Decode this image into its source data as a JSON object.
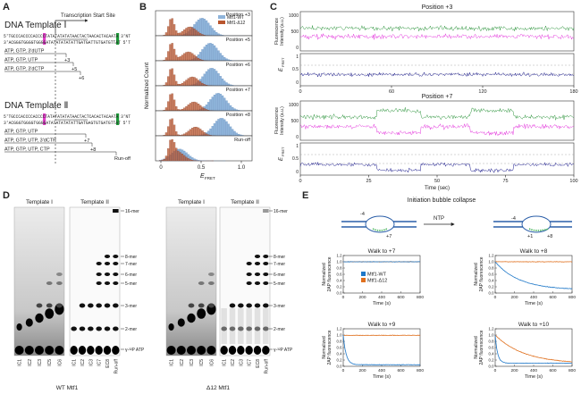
{
  "panel_a": {
    "label": "A",
    "template_1": {
      "title": "DNA Template Ⅰ",
      "start_site": "Transcription Start Site",
      "strand_nt": "5'TGCCCACCCCACCCCTATATATATATAACTACTAACACTACAATA 3'NT",
      "strand_t": "3'ACGGGTGGGGTGGGGATATATATATATTGATGATTGTGATGTTAT 5'T",
      "conditions": [
        [
          "ATP, GTP, 3'dUTP",
          "+3"
        ],
        [
          "ATP, GTP, UTP",
          "+5"
        ],
        [
          "ATP, GTP, 3'dCTP",
          "+6"
        ]
      ]
    },
    "template_2": {
      "title": "DNA Template Ⅱ",
      "strand_nt": "5'TGCCCACCCCACCCCTATATATATATAACTACTCACACTACAATA 3'NT",
      "strand_t": "3'ACGGGTGGGGTGGGGATATATATATATTGATGAGTGTGATGTTAT 5'T",
      "conditions": [
        [
          "ATP, GTP, UTP",
          "+7"
        ],
        [
          "ATP, GTP, UTP, 3'dCTP",
          "+8"
        ],
        [
          "ATP, GTP, UTP, CTP",
          "Run-off"
        ]
      ]
    }
  },
  "panel_b": {
    "label": "B",
    "y_label": "Normalized Count",
    "x_label": "E",
    "x_label_sub": "FRET",
    "x_ticks": [
      "0",
      "0.5",
      "1.0"
    ],
    "rows": [
      "Position +3",
      "Position +5",
      "Position +6",
      "Position +7",
      "Position +8",
      "Run-off"
    ],
    "legend": [
      "Mtf1-WT",
      "Mtf1-Δ12"
    ]
  },
  "panel_c": {
    "label": "C",
    "intensity_label": [
      "Fluorescence",
      "Intensity (a.u.)"
    ],
    "efret_label": "E",
    "efret_sub": "FRET",
    "intensity_ticks": [
      "1000",
      "500",
      "0"
    ],
    "efret_ticks": [
      "1",
      "0.5",
      "0"
    ],
    "x_label": "Time (sec)",
    "traces": [
      {
        "title": "Position +3",
        "x_ticks": [
          "0",
          "60",
          "120",
          "180"
        ]
      },
      {
        "title": "Position +7",
        "x_ticks": [
          "0",
          "25",
          "50",
          "75",
          "100"
        ]
      }
    ]
  },
  "panel_d": {
    "label": "D",
    "gels": [
      {
        "title": "Template I",
        "lanes": [
          "IC1",
          "IC2",
          "IC3",
          "IC5",
          "IC6"
        ]
      },
      {
        "title": "Template II",
        "lanes": [
          "IC1",
          "IC2",
          "IC3",
          "IC7",
          "EC8",
          "Run-off"
        ]
      }
    ],
    "markers": [
      "16-mer",
      "8-mer",
      "7-mer",
      "6-mer",
      "5-mer",
      "3-mer",
      "2-mer",
      "γ-³²P ATP"
    ],
    "captions": [
      "WT Mtf1",
      "Δ12 Mtf1"
    ]
  },
  "panel_e": {
    "label": "E",
    "title": "Initiation bubble collapse",
    "arrow": "NTP",
    "left_marks": [
      "-4",
      "+7"
    ],
    "right_marks": [
      "-4",
      "+1",
      "+8"
    ],
    "plots": [
      "Walk to +7",
      "Walk to +8",
      "Walk to +9",
      "Walk to +10"
    ],
    "y_label": [
      "Normalized",
      "2AP fluorescence"
    ],
    "x_label": "Time (s)",
    "x_ticks": [
      "0",
      "200",
      "400",
      "600",
      "800"
    ],
    "y_ticks": [
      "0.0",
      "0.2",
      "0.4",
      "0.6",
      "0.8",
      "1.0",
      "1.2"
    ],
    "legend": [
      "Mtf1-WT",
      "Mtf1-Δ12"
    ]
  }
}
